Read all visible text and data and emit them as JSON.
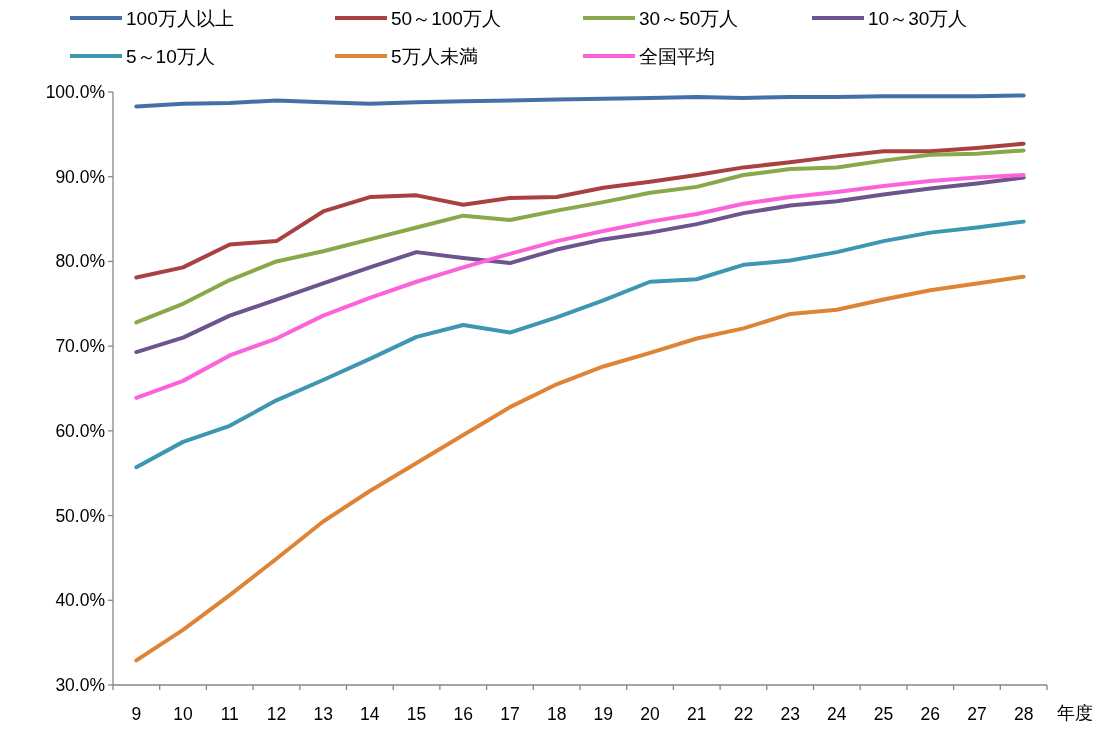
{
  "chart_data": {
    "type": "line",
    "xlabel": "年度",
    "categories": [
      "9",
      "10",
      "11",
      "12",
      "13",
      "14",
      "15",
      "16",
      "17",
      "18",
      "19",
      "20",
      "21",
      "22",
      "23",
      "24",
      "25",
      "26",
      "27",
      "28"
    ],
    "ylim": [
      30,
      100
    ],
    "yticks": [
      {
        "value": 30,
        "label": "30.0%"
      },
      {
        "value": 40,
        "label": "40.0%"
      },
      {
        "value": 50,
        "label": "50.0%"
      },
      {
        "value": 60,
        "label": "60.0%"
      },
      {
        "value": 70,
        "label": "70.0%"
      },
      {
        "value": 80,
        "label": "80.0%"
      },
      {
        "value": 90,
        "label": "90.0%"
      },
      {
        "value": 100,
        "label": "100.0%"
      }
    ],
    "grid": false,
    "legend": "top",
    "marker": "none",
    "line_style": "solid",
    "series": [
      {
        "name": "100万人以上",
        "color": "#4470a8",
        "values": [
          98.3,
          98.6,
          98.7,
          99.0,
          98.8,
          98.6,
          98.8,
          98.9,
          99.0,
          99.1,
          99.2,
          99.3,
          99.4,
          99.3,
          99.4,
          99.4,
          99.5,
          99.5,
          99.5,
          99.6
        ]
      },
      {
        "name": "50～100万人",
        "color": "#a84140",
        "values": [
          78.1,
          79.3,
          82.0,
          82.4,
          85.9,
          87.6,
          87.8,
          86.7,
          87.5,
          87.6,
          88.7,
          89.4,
          90.2,
          91.1,
          91.7,
          92.4,
          93.0,
          93.0,
          93.4,
          93.9
        ]
      },
      {
        "name": "30～50万人",
        "color": "#89a84a",
        "values": [
          72.8,
          75.0,
          77.8,
          80.0,
          81.2,
          82.6,
          84.0,
          85.4,
          84.9,
          86.0,
          87.0,
          88.1,
          88.8,
          90.2,
          90.9,
          91.1,
          91.9,
          92.6,
          92.7,
          93.1
        ]
      },
      {
        "name": "10～30万人",
        "color": "#6e548f",
        "values": [
          69.3,
          71.0,
          73.6,
          75.5,
          77.4,
          79.3,
          81.1,
          80.4,
          79.8,
          81.4,
          82.6,
          83.4,
          84.4,
          85.7,
          86.6,
          87.1,
          87.9,
          88.6,
          89.2,
          89.9
        ]
      },
      {
        "name": "5～10万人",
        "color": "#3d97b0",
        "values": [
          55.7,
          58.7,
          60.6,
          63.6,
          66.0,
          68.5,
          71.1,
          72.5,
          71.6,
          73.4,
          75.4,
          77.6,
          77.9,
          79.6,
          80.1,
          81.1,
          82.4,
          83.4,
          84.0,
          84.7
        ]
      },
      {
        "name": "5万人未満",
        "color": "#de8436",
        "values": [
          32.9,
          36.5,
          40.6,
          44.9,
          49.3,
          52.9,
          56.2,
          59.5,
          62.8,
          65.5,
          67.6,
          69.2,
          70.9,
          72.1,
          73.8,
          74.3,
          75.5,
          76.6,
          77.4,
          78.2
        ]
      },
      {
        "name": "全国平均",
        "color": "#fc63da",
        "values": [
          63.9,
          65.9,
          68.9,
          70.9,
          73.6,
          75.7,
          77.6,
          79.3,
          80.9,
          82.4,
          83.6,
          84.7,
          85.6,
          86.8,
          87.6,
          88.2,
          88.9,
          89.5,
          89.9,
          90.2
        ]
      }
    ]
  }
}
